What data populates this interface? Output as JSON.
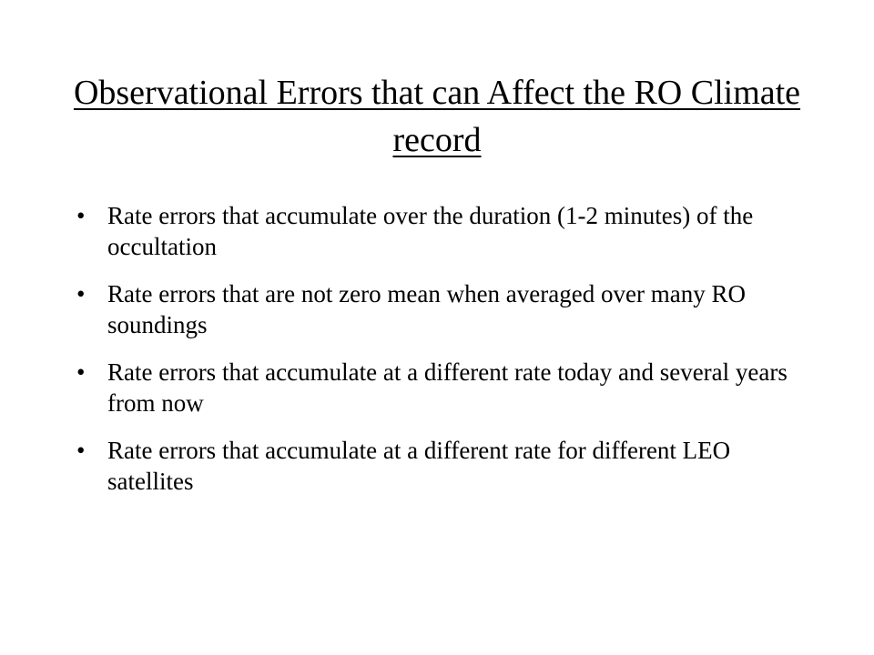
{
  "slide": {
    "title": "Observational Errors that can Affect the RO Climate record",
    "bullet_glyph": "•",
    "bullets": [
      {
        "text": "Rate errors that accumulate over the duration (1-2 minutes) of the occultation"
      },
      {
        "text": "Rate errors that are not zero mean when averaged over many RO soundings"
      },
      {
        "text": "Rate errors that accumulate at a different rate today and several years from now"
      },
      {
        "text": "Rate errors that accumulate at a different rate for different LEO satellites"
      }
    ]
  }
}
